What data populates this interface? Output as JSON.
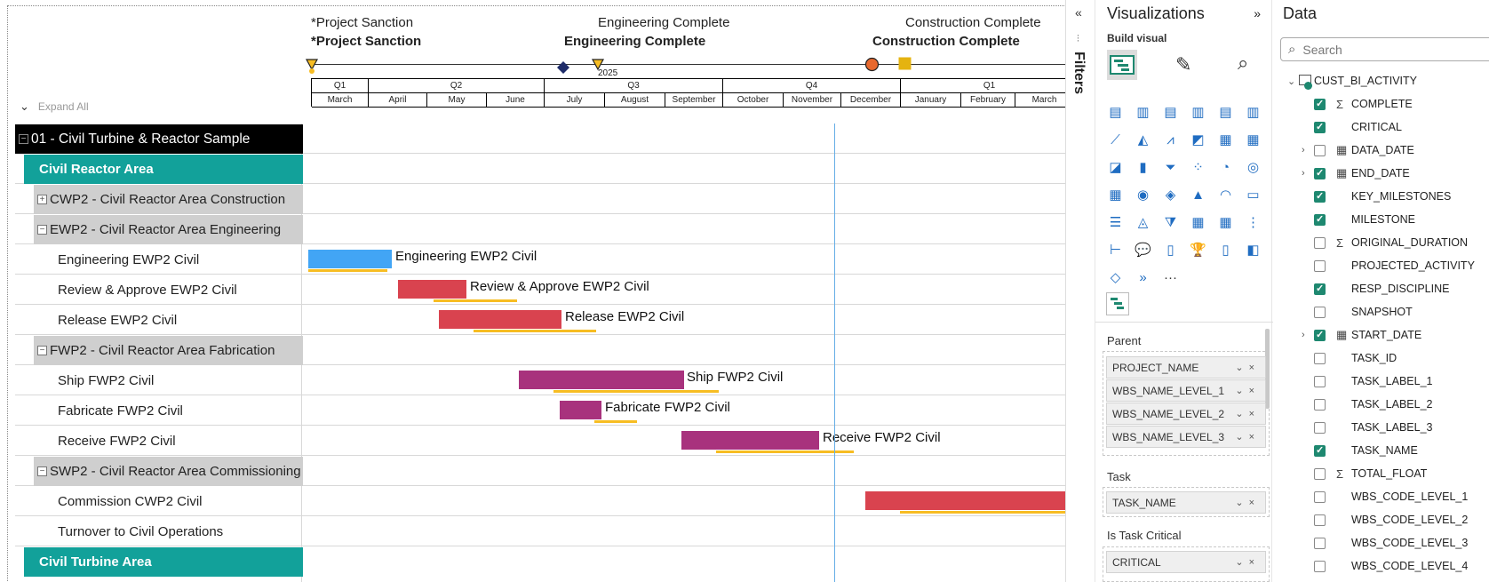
{
  "gantt": {
    "milestones": [
      {
        "plain": "*Project Sanction",
        "bold": "*Project Sanction"
      },
      {
        "plain": "Engineering Complete",
        "bold": "Engineering Complete"
      },
      {
        "plain": "Construction Complete",
        "bold": "Construction Complete"
      }
    ],
    "year_label": "2025",
    "quarters": [
      "Q1",
      "Q2",
      "Q3",
      "Q4",
      "Q1"
    ],
    "months": [
      "March",
      "April",
      "May",
      "June",
      "July",
      "August",
      "September",
      "October",
      "November",
      "December",
      "January",
      "February",
      "March"
    ],
    "expand_all": "Expand All",
    "rows": [
      {
        "type": "project",
        "label": "01 - Civil Turbine & Reactor Sample",
        "box": "−"
      },
      {
        "type": "area",
        "label": "Civil Reactor Area"
      },
      {
        "type": "package",
        "label": "CWP2 - Civil Reactor Area Construction",
        "box": "+"
      },
      {
        "type": "package",
        "label": "EWP2 - Civil Reactor Area Engineering",
        "box": "−"
      },
      {
        "type": "task",
        "label": "Engineering EWP2 Civil",
        "bar_label": "Engineering EWP2 Civil"
      },
      {
        "type": "task",
        "label": "Review & Approve EWP2 Civil",
        "bar_label": "Review & Approve EWP2 Civil"
      },
      {
        "type": "task",
        "label": "Release EWP2 Civil",
        "bar_label": "Release EWP2 Civil"
      },
      {
        "type": "package",
        "label": "FWP2 - Civil Reactor Area Fabrication",
        "box": "−"
      },
      {
        "type": "task",
        "label": "Ship FWP2 Civil",
        "bar_label": "Ship FWP2 Civil"
      },
      {
        "type": "task",
        "label": "Fabricate FWP2 Civil",
        "bar_label": "Fabricate FWP2 Civil"
      },
      {
        "type": "task",
        "label": "Receive FWP2 Civil",
        "bar_label": "Receive FWP2 Civil"
      },
      {
        "type": "package",
        "label": "SWP2 - Civil Reactor Area Commissioning",
        "box": "−"
      },
      {
        "type": "task",
        "label": "Commission CWP2 Civil",
        "bar_label": ""
      },
      {
        "type": "task",
        "label": "Turnover to Civil Operations",
        "bar_label": ""
      },
      {
        "type": "area",
        "label": "Civil Turbine Area"
      }
    ],
    "colors": {
      "engineering": "#42a5f5",
      "review": "#d9434f",
      "fabrication": "#a8327d",
      "baseline": "#f7bd23",
      "area": "#12a19a",
      "today_line": "#66aee6"
    }
  },
  "filters_label": "Filters",
  "visualizations": {
    "title": "Visualizations",
    "build_visual": "Build visual",
    "more": "···",
    "wells": [
      {
        "title": "Parent",
        "fields": [
          "PROJECT_NAME",
          "WBS_NAME_LEVEL_1",
          "WBS_NAME_LEVEL_2",
          "WBS_NAME_LEVEL_3"
        ]
      },
      {
        "title": "Task",
        "fields": [
          "TASK_NAME"
        ]
      },
      {
        "title": "Is Task Critical",
        "fields": [
          "CRITICAL"
        ]
      }
    ]
  },
  "data_pane": {
    "title": "Data",
    "search_placeholder": "Search",
    "table_name": "CUST_BI_ACTIVITY",
    "fields": [
      {
        "name": "COMPLETE",
        "checked": true,
        "sigma": true,
        "expand": false,
        "calendar": false
      },
      {
        "name": "CRITICAL",
        "checked": true,
        "sigma": false,
        "expand": false,
        "calendar": false
      },
      {
        "name": "DATA_DATE",
        "checked": false,
        "sigma": false,
        "expand": true,
        "calendar": true
      },
      {
        "name": "END_DATE",
        "checked": true,
        "sigma": false,
        "expand": true,
        "calendar": true
      },
      {
        "name": "KEY_MILESTONES",
        "checked": true,
        "sigma": false,
        "expand": false,
        "calendar": false
      },
      {
        "name": "MILESTONE",
        "checked": true,
        "sigma": false,
        "expand": false,
        "calendar": false
      },
      {
        "name": "ORIGINAL_DURATION",
        "checked": false,
        "sigma": true,
        "expand": false,
        "calendar": false
      },
      {
        "name": "PROJECTED_ACTIVITY",
        "checked": false,
        "sigma": false,
        "expand": false,
        "calendar": false
      },
      {
        "name": "RESP_DISCIPLINE",
        "checked": true,
        "sigma": false,
        "expand": false,
        "calendar": false
      },
      {
        "name": "SNAPSHOT",
        "checked": false,
        "sigma": false,
        "expand": false,
        "calendar": false
      },
      {
        "name": "START_DATE",
        "checked": true,
        "sigma": false,
        "expand": true,
        "calendar": true
      },
      {
        "name": "TASK_ID",
        "checked": false,
        "sigma": false,
        "expand": false,
        "calendar": false
      },
      {
        "name": "TASK_LABEL_1",
        "checked": false,
        "sigma": false,
        "expand": false,
        "calendar": false
      },
      {
        "name": "TASK_LABEL_2",
        "checked": false,
        "sigma": false,
        "expand": false,
        "calendar": false
      },
      {
        "name": "TASK_LABEL_3",
        "checked": false,
        "sigma": false,
        "expand": false,
        "calendar": false
      },
      {
        "name": "TASK_NAME",
        "checked": true,
        "sigma": false,
        "expand": false,
        "calendar": false
      },
      {
        "name": "TOTAL_FLOAT",
        "checked": false,
        "sigma": true,
        "expand": false,
        "calendar": false
      },
      {
        "name": "WBS_CODE_LEVEL_1",
        "checked": false,
        "sigma": false,
        "expand": false,
        "calendar": false
      },
      {
        "name": "WBS_CODE_LEVEL_2",
        "checked": false,
        "sigma": false,
        "expand": false,
        "calendar": false
      },
      {
        "name": "WBS_CODE_LEVEL_3",
        "checked": false,
        "sigma": false,
        "expand": false,
        "calendar": false
      },
      {
        "name": "WBS_CODE_LEVEL_4",
        "checked": false,
        "sigma": false,
        "expand": false,
        "calendar": false
      }
    ]
  }
}
